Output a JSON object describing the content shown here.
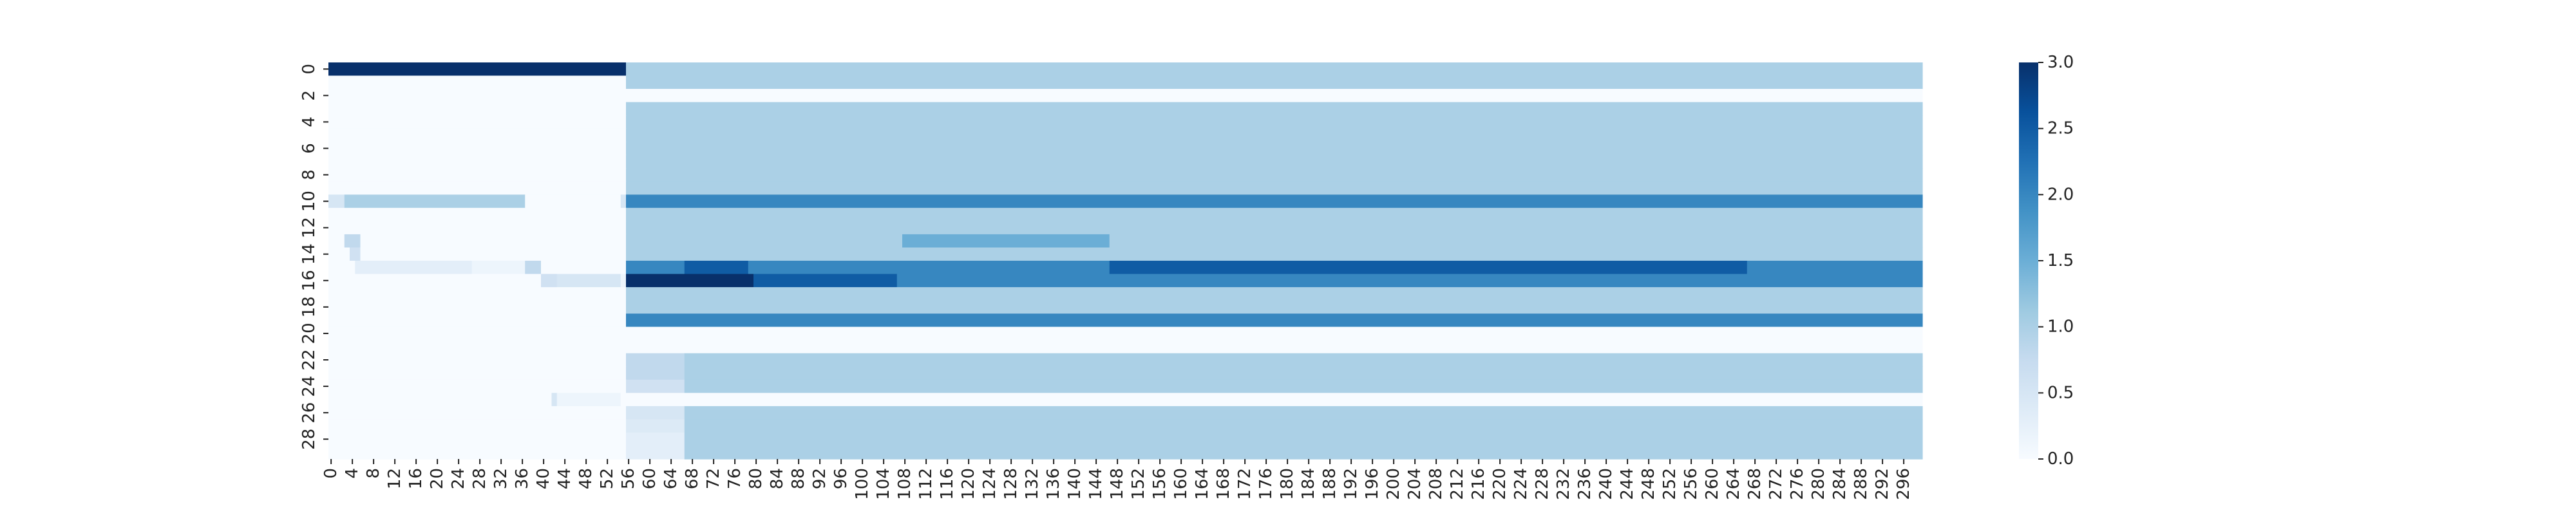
{
  "chart_data": {
    "type": "heatmap",
    "title": "",
    "xlabel": "",
    "ylabel": "",
    "n_cols": 300,
    "n_rows": 30,
    "x_tick_step": 4,
    "y_tick_step": 2,
    "x_ticks": [
      0,
      4,
      8,
      12,
      16,
      20,
      24,
      28,
      32,
      36,
      40,
      44,
      48,
      52,
      56,
      60,
      64,
      68,
      72,
      76,
      80,
      84,
      88,
      92,
      96,
      100,
      104,
      108,
      112,
      116,
      120,
      124,
      128,
      132,
      136,
      140,
      144,
      148,
      152,
      156,
      160,
      164,
      168,
      172,
      176,
      180,
      184,
      188,
      192,
      196,
      200,
      204,
      208,
      212,
      216,
      220,
      224,
      228,
      232,
      236,
      240,
      244,
      248,
      252,
      256,
      260,
      264,
      268,
      272,
      276,
      280,
      284,
      288,
      292,
      296
    ],
    "y_ticks": [
      0,
      2,
      4,
      6,
      8,
      10,
      12,
      14,
      16,
      18,
      20,
      22,
      24,
      26,
      28
    ],
    "colormap": "Blues",
    "vmin": 0.0,
    "vmax": 3.0,
    "colorbar_ticks": [
      "0.0",
      "0.5",
      "1.0",
      "1.5",
      "2.0",
      "2.5",
      "3.0"
    ],
    "colorbar_tick_values": [
      0.0,
      0.5,
      1.0,
      1.5,
      2.0,
      2.5,
      3.0
    ],
    "row_segments": [
      {
        "row": 0,
        "segments": [
          [
            0,
            56,
            3.0
          ],
          [
            56,
            300,
            1.0
          ]
        ]
      },
      {
        "row": 1,
        "segments": [
          [
            0,
            56,
            0.0
          ],
          [
            56,
            300,
            1.0
          ]
        ]
      },
      {
        "row": 2,
        "segments": [
          [
            0,
            300,
            0.0
          ]
        ]
      },
      {
        "row": 3,
        "segments": [
          [
            0,
            56,
            0.0
          ],
          [
            56,
            300,
            1.0
          ]
        ]
      },
      {
        "row": 4,
        "segments": [
          [
            0,
            56,
            0.0
          ],
          [
            56,
            300,
            1.0
          ]
        ]
      },
      {
        "row": 5,
        "segments": [
          [
            0,
            56,
            0.0
          ],
          [
            56,
            300,
            1.0
          ]
        ]
      },
      {
        "row": 6,
        "segments": [
          [
            0,
            56,
            0.0
          ],
          [
            56,
            300,
            1.0
          ]
        ]
      },
      {
        "row": 7,
        "segments": [
          [
            0,
            56,
            0.0
          ],
          [
            56,
            300,
            1.0
          ]
        ]
      },
      {
        "row": 8,
        "segments": [
          [
            0,
            56,
            0.0
          ],
          [
            56,
            300,
            1.0
          ]
        ]
      },
      {
        "row": 9,
        "segments": [
          [
            0,
            56,
            0.0
          ],
          [
            56,
            300,
            1.0
          ]
        ]
      },
      {
        "row": 10,
        "segments": [
          [
            0,
            3,
            0.5
          ],
          [
            3,
            37,
            1.0
          ],
          [
            37,
            55,
            0.0
          ],
          [
            55,
            56,
            0.5
          ],
          [
            56,
            300,
            2.0
          ]
        ]
      },
      {
        "row": 11,
        "segments": [
          [
            0,
            56,
            0.0
          ],
          [
            56,
            300,
            1.0
          ]
        ]
      },
      {
        "row": 12,
        "segments": [
          [
            0,
            56,
            0.0
          ],
          [
            56,
            300,
            1.0
          ]
        ]
      },
      {
        "row": 13,
        "segments": [
          [
            0,
            3,
            0.0
          ],
          [
            3,
            6,
            0.8
          ],
          [
            6,
            56,
            0.0
          ],
          [
            56,
            108,
            1.0
          ],
          [
            108,
            147,
            1.5
          ],
          [
            147,
            300,
            1.0
          ]
        ]
      },
      {
        "row": 14,
        "segments": [
          [
            0,
            4,
            0.0
          ],
          [
            4,
            6,
            0.6
          ],
          [
            6,
            56,
            0.0
          ],
          [
            56,
            300,
            1.0
          ]
        ]
      },
      {
        "row": 15,
        "segments": [
          [
            0,
            5,
            0.0
          ],
          [
            5,
            27,
            0.3
          ],
          [
            27,
            37,
            0.15
          ],
          [
            37,
            40,
            0.8
          ],
          [
            40,
            56,
            0.0
          ],
          [
            56,
            67,
            2.0
          ],
          [
            67,
            79,
            2.5
          ],
          [
            79,
            147,
            2.0
          ],
          [
            147,
            267,
            2.5
          ],
          [
            267,
            300,
            2.0
          ]
        ]
      },
      {
        "row": 16,
        "segments": [
          [
            0,
            40,
            0.0
          ],
          [
            40,
            43,
            0.6
          ],
          [
            43,
            55,
            0.5
          ],
          [
            55,
            56,
            0.15
          ],
          [
            56,
            80,
            3.0
          ],
          [
            80,
            107,
            2.5
          ],
          [
            107,
            300,
            2.0
          ]
        ]
      },
      {
        "row": 17,
        "segments": [
          [
            0,
            56,
            0.0
          ],
          [
            56,
            300,
            1.0
          ]
        ]
      },
      {
        "row": 18,
        "segments": [
          [
            0,
            56,
            0.0
          ],
          [
            56,
            300,
            1.0
          ]
        ]
      },
      {
        "row": 19,
        "segments": [
          [
            0,
            56,
            0.0
          ],
          [
            56,
            300,
            2.0
          ]
        ]
      },
      {
        "row": 20,
        "segments": [
          [
            0,
            300,
            0.0
          ]
        ]
      },
      {
        "row": 21,
        "segments": [
          [
            0,
            300,
            0.0
          ]
        ]
      },
      {
        "row": 22,
        "segments": [
          [
            0,
            56,
            0.0
          ],
          [
            56,
            67,
            0.8
          ],
          [
            67,
            300,
            1.0
          ]
        ]
      },
      {
        "row": 23,
        "segments": [
          [
            0,
            56,
            0.0
          ],
          [
            56,
            67,
            0.8
          ],
          [
            67,
            300,
            1.0
          ]
        ]
      },
      {
        "row": 24,
        "segments": [
          [
            0,
            56,
            0.0
          ],
          [
            56,
            67,
            0.6
          ],
          [
            67,
            300,
            1.0
          ]
        ]
      },
      {
        "row": 25,
        "segments": [
          [
            0,
            42,
            0.0
          ],
          [
            42,
            43,
            0.5
          ],
          [
            43,
            55,
            0.15
          ],
          [
            55,
            300,
            0.0
          ]
        ]
      },
      {
        "row": 26,
        "segments": [
          [
            0,
            56,
            0.0
          ],
          [
            56,
            67,
            0.5
          ],
          [
            67,
            300,
            1.0
          ]
        ]
      },
      {
        "row": 27,
        "segments": [
          [
            0,
            56,
            0.0
          ],
          [
            56,
            67,
            0.4
          ],
          [
            67,
            300,
            1.0
          ]
        ]
      },
      {
        "row": 28,
        "segments": [
          [
            0,
            56,
            0.0
          ],
          [
            56,
            67,
            0.3
          ],
          [
            67,
            300,
            1.0
          ]
        ]
      },
      {
        "row": 29,
        "segments": [
          [
            0,
            56,
            0.0
          ],
          [
            56,
            67,
            0.3
          ],
          [
            67,
            300,
            1.0
          ]
        ]
      }
    ]
  }
}
